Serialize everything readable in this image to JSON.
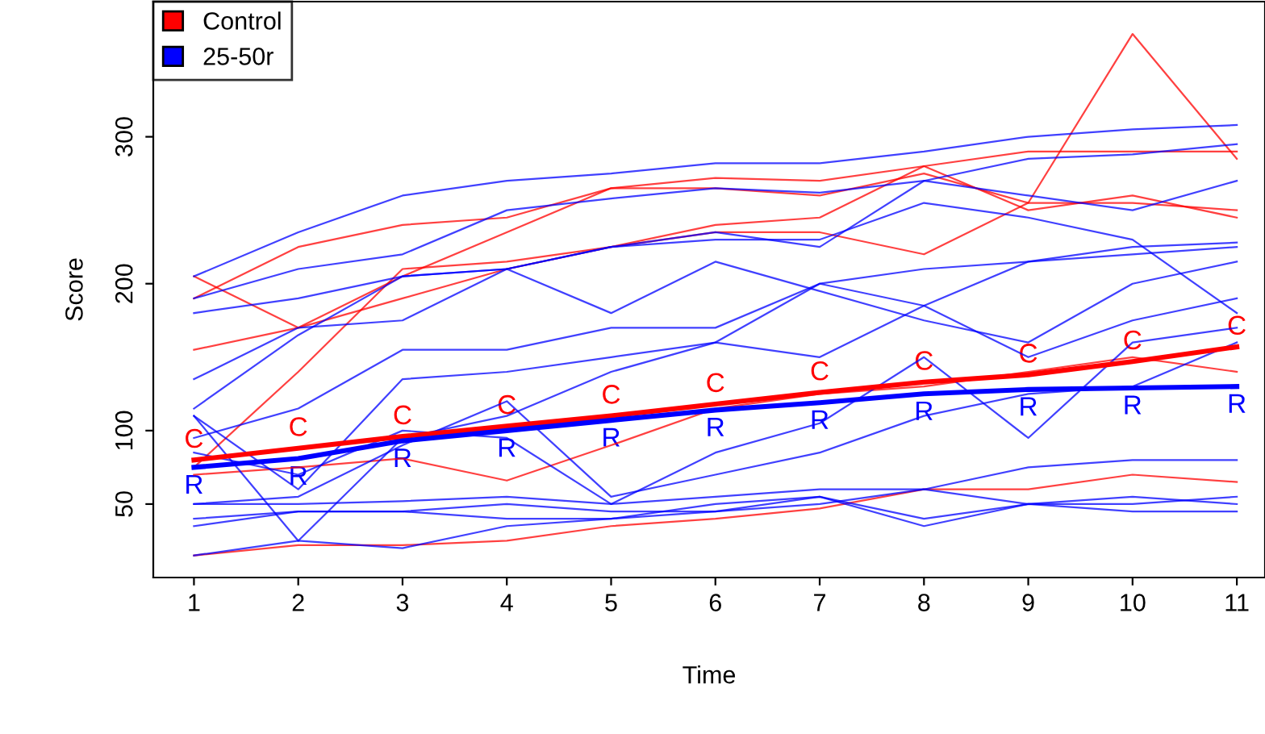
{
  "chart_data": {
    "type": "line",
    "xlabel": "Time",
    "ylabel": "Score",
    "x": [
      1,
      2,
      3,
      4,
      5,
      6,
      7,
      8,
      9,
      10,
      11
    ],
    "xlim": [
      0.61,
      11.27
    ],
    "ylim": [
      0,
      392
    ],
    "xticks": [
      1,
      2,
      3,
      4,
      5,
      6,
      7,
      8,
      9,
      10,
      11
    ],
    "yticks": [
      50,
      100,
      200,
      300
    ],
    "grid": false,
    "legend": "top left",
    "marker": "none",
    "line_style": "solid",
    "series": [
      {
        "color": "#ff0000",
        "values": [
          205,
          170,
          190,
          210,
          225,
          240,
          245,
          280,
          250,
          260,
          245
        ]
      },
      {
        "color": "#ff0000",
        "values": [
          190,
          225,
          240,
          245,
          265,
          272,
          270,
          280,
          290,
          290,
          290
        ]
      },
      {
        "color": "#ff0000",
        "values": [
          155,
          170,
          205,
          235,
          265,
          265,
          260,
          275,
          255,
          370,
          285
        ]
      },
      {
        "color": "#ff0000",
        "values": [
          75,
          140,
          210,
          215,
          225,
          235,
          235,
          220,
          255,
          255,
          250
        ]
      },
      {
        "color": "#ff0000",
        "values": [
          70,
          75,
          81,
          66,
          90,
          115,
          125,
          130,
          140,
          150,
          140
        ]
      },
      {
        "color": "#ff0000",
        "values": [
          15,
          22,
          22,
          25,
          35,
          40,
          47,
          60,
          60,
          70,
          65
        ]
      },
      {
        "color": "#0000ff",
        "values": [
          205,
          235,
          260,
          270,
          275,
          282,
          282,
          290,
          300,
          305,
          308
        ]
      },
      {
        "color": "#0000ff",
        "values": [
          190,
          210,
          220,
          250,
          258,
          265,
          262,
          270,
          285,
          288,
          295
        ]
      },
      {
        "color": "#0000ff",
        "values": [
          180,
          190,
          205,
          210,
          225,
          230,
          230,
          255,
          245,
          230,
          180
        ]
      },
      {
        "color": "#0000ff",
        "values": [
          135,
          170,
          175,
          210,
          225,
          235,
          225,
          270,
          260,
          250,
          270
        ]
      },
      {
        "color": "#0000ff",
        "values": [
          115,
          165,
          205,
          210,
          180,
          215,
          195,
          175,
          160,
          200,
          215
        ]
      },
      {
        "color": "#0000ff",
        "values": [
          95,
          115,
          155,
          155,
          170,
          170,
          200,
          210,
          215,
          225,
          228
        ]
      },
      {
        "color": "#0000ff",
        "values": [
          110,
          25,
          95,
          110,
          140,
          160,
          150,
          185,
          215,
          220,
          225
        ]
      },
      {
        "color": "#0000ff",
        "values": [
          110,
          60,
          135,
          140,
          150,
          160,
          200,
          185,
          150,
          175,
          190
        ]
      },
      {
        "color": "#0000ff",
        "values": [
          85,
          70,
          100,
          95,
          50,
          85,
          105,
          150,
          95,
          160,
          170
        ]
      },
      {
        "color": "#0000ff",
        "values": [
          50,
          55,
          90,
          120,
          55,
          70,
          85,
          110,
          125,
          130,
          160
        ]
      },
      {
        "color": "#0000ff",
        "values": [
          50,
          50,
          52,
          55,
          50,
          55,
          60,
          60,
          75,
          80,
          80
        ]
      },
      {
        "color": "#0000ff",
        "values": [
          40,
          45,
          45,
          50,
          45,
          45,
          55,
          40,
          50,
          55,
          50
        ]
      },
      {
        "color": "#0000ff",
        "values": [
          35,
          45,
          45,
          40,
          40,
          50,
          55,
          35,
          50,
          45,
          45
        ]
      },
      {
        "color": "#0000ff",
        "values": [
          15,
          25,
          20,
          35,
          40,
          45,
          50,
          60,
          50,
          50,
          55
        ]
      },
      {
        "name": "Control",
        "color": "#ff0000",
        "values": [
          80,
          88,
          96,
          103,
          110,
          118,
          126,
          133,
          138,
          147,
          157
        ]
      },
      {
        "name": "25-50r",
        "color": "#0000ff",
        "values": [
          75,
          81,
          93,
          100,
          107,
          114,
          119,
          125,
          128,
          129,
          130
        ]
      }
    ],
    "annotations": [
      {
        "text": "C",
        "x": 1,
        "y": 80
      },
      {
        "text": "C",
        "x": 2,
        "y": 88
      },
      {
        "text": "C",
        "x": 3,
        "y": 96
      },
      {
        "text": "C",
        "x": 4,
        "y": 103
      },
      {
        "text": "C",
        "x": 5,
        "y": 110
      },
      {
        "text": "C",
        "x": 6,
        "y": 118
      },
      {
        "text": "C",
        "x": 7,
        "y": 126
      },
      {
        "text": "C",
        "x": 8,
        "y": 133
      },
      {
        "text": "C",
        "x": 9,
        "y": 138
      },
      {
        "text": "C",
        "x": 10,
        "y": 147
      },
      {
        "text": "C",
        "x": 11,
        "y": 157
      },
      {
        "text": "R",
        "x": 1,
        "y": 75
      },
      {
        "text": "R",
        "x": 2,
        "y": 81
      },
      {
        "text": "R",
        "x": 3,
        "y": 93
      },
      {
        "text": "R",
        "x": 4,
        "y": 100
      },
      {
        "text": "R",
        "x": 5,
        "y": 107
      },
      {
        "text": "R",
        "x": 6,
        "y": 114
      },
      {
        "text": "R",
        "x": 7,
        "y": 119
      },
      {
        "text": "R",
        "x": 8,
        "y": 125
      },
      {
        "text": "R",
        "x": 9,
        "y": 128
      },
      {
        "text": "R",
        "x": 10,
        "y": 129
      },
      {
        "text": "R",
        "x": 11,
        "y": 130
      }
    ]
  }
}
